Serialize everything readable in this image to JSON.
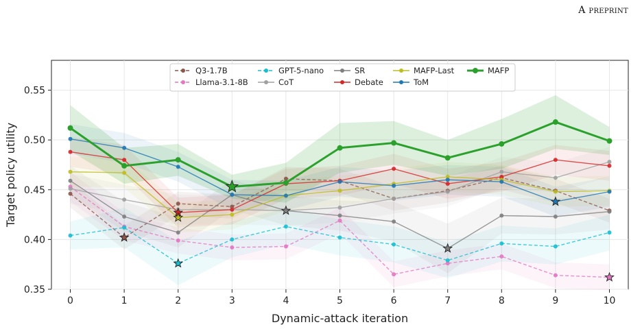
{
  "header": {
    "text": "A preprint"
  },
  "chart_data": {
    "type": "line",
    "title": "",
    "xlabel": "Dynamic-attack iteration",
    "ylabel": "Target policy utility",
    "x": [
      0,
      1,
      2,
      3,
      4,
      5,
      6,
      7,
      8,
      9,
      10
    ],
    "xlim": [
      -0.35,
      10.35
    ],
    "ylim": [
      0.35,
      0.58
    ],
    "yticks": [
      0.35,
      0.4,
      0.45,
      0.5,
      0.55
    ],
    "ytick_labels": [
      "0.35",
      "0.40",
      "0.45",
      "0.50",
      "0.55"
    ],
    "xtick_labels": [
      "0",
      "1",
      "2",
      "3",
      "4",
      "5",
      "6",
      "7",
      "8",
      "9",
      "10"
    ],
    "grid": true,
    "legend_position": "top-center",
    "series": [
      {
        "name": "Q3-1.7B",
        "color": "#8c564b",
        "dash": true,
        "values": [
          0.446,
          0.402,
          0.436,
          0.433,
          0.461,
          0.459,
          0.441,
          0.449,
          0.462,
          0.449,
          0.429
        ],
        "band": [
          0.014,
          0.012,
          0.012,
          0.012,
          0.012,
          0.012,
          0.012,
          0.012,
          0.012,
          0.012,
          0.012
        ],
        "star": 1
      },
      {
        "name": "Llama-3.1-8B",
        "color": "#e377c2",
        "dash": true,
        "values": [
          0.453,
          0.413,
          0.399,
          0.392,
          0.393,
          0.419,
          0.365,
          0.376,
          0.383,
          0.364,
          0.362
        ],
        "band": [
          0.015,
          0.014,
          0.013,
          0.013,
          0.013,
          0.013,
          0.013,
          0.013,
          0.013,
          0.013,
          0.013
        ],
        "star": 10
      },
      {
        "name": "GPT-5-nano",
        "color": "#17becf",
        "dash": true,
        "values": [
          0.404,
          0.412,
          0.376,
          0.4,
          0.413,
          0.402,
          0.395,
          0.379,
          0.396,
          0.393,
          0.407
        ],
        "band": [
          0.014,
          0.02,
          0.022,
          0.018,
          0.018,
          0.018,
          0.018,
          0.018,
          0.018,
          0.018,
          0.018
        ],
        "star": 2
      },
      {
        "name": "CoT",
        "color": "#a0a0a0",
        "dash": false,
        "values": [
          0.451,
          0.44,
          0.43,
          0.43,
          0.429,
          0.432,
          0.441,
          0.448,
          0.468,
          0.462,
          0.478
        ],
        "band": [
          0.015,
          0.015,
          0.015,
          0.015,
          0.015,
          0.015,
          0.015,
          0.015,
          0.015,
          0.015,
          0.015
        ],
        "star": null
      },
      {
        "name": "SR",
        "color": "#7f7f7f",
        "dash": false,
        "values": [
          0.459,
          0.423,
          0.407,
          0.445,
          0.429,
          0.424,
          0.418,
          0.391,
          0.424,
          0.423,
          0.428
        ],
        "band": [
          0.015,
          0.015,
          0.015,
          0.015,
          0.015,
          0.015,
          0.02,
          0.025,
          0.018,
          0.018,
          0.018
        ],
        "star": 7,
        "star2": 4
      },
      {
        "name": "Debate",
        "color": "#d62728",
        "dash": false,
        "values": [
          0.488,
          0.48,
          0.427,
          0.43,
          0.456,
          0.459,
          0.471,
          0.456,
          0.463,
          0.48,
          0.474
        ],
        "band": [
          0.015,
          0.015,
          0.015,
          0.015,
          0.015,
          0.015,
          0.015,
          0.015,
          0.015,
          0.015,
          0.015
        ],
        "star": 2
      },
      {
        "name": "MAFP-Last",
        "color": "#bcbd22",
        "dash": false,
        "values": [
          0.468,
          0.467,
          0.422,
          0.425,
          0.444,
          0.449,
          0.456,
          0.463,
          0.46,
          0.448,
          0.449
        ],
        "band": [
          0.015,
          0.015,
          0.015,
          0.015,
          0.015,
          0.015,
          0.015,
          0.015,
          0.015,
          0.015,
          0.015
        ],
        "star": 2
      },
      {
        "name": "ToM",
        "color": "#1f77b4",
        "dash": false,
        "values": [
          0.501,
          0.492,
          0.473,
          0.445,
          0.444,
          0.458,
          0.454,
          0.46,
          0.458,
          0.438,
          0.448
        ],
        "band": [
          0.015,
          0.015,
          0.015,
          0.015,
          0.015,
          0.015,
          0.015,
          0.015,
          0.015,
          0.015,
          0.015
        ],
        "star": 9
      },
      {
        "name": "MAFP",
        "color": "#2ca02c",
        "dash": false,
        "bold": true,
        "values": [
          0.512,
          0.474,
          0.48,
          0.453,
          0.457,
          0.492,
          0.497,
          0.482,
          0.496,
          0.518,
          0.499
        ],
        "band": [
          0.023,
          0.018,
          0.016,
          0.012,
          0.02,
          0.025,
          0.022,
          0.018,
          0.025,
          0.027,
          0.014
        ],
        "star": 3
      }
    ]
  },
  "legend": {
    "columns": [
      [
        "Q3-1.7B",
        "Llama-3.1-8B"
      ],
      [
        "GPT-5-nano",
        "CoT"
      ],
      [
        "SR",
        "Debate"
      ],
      [
        "MAFP-Last",
        "ToM"
      ],
      [
        "MAFP"
      ]
    ]
  }
}
